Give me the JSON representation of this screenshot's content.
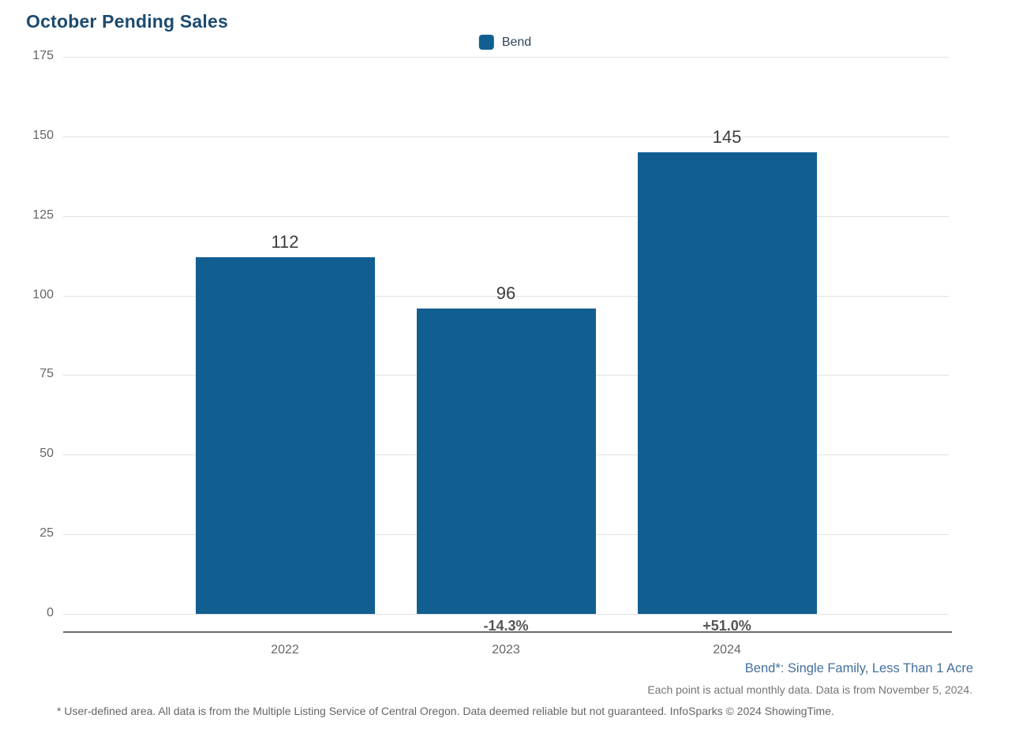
{
  "page": {
    "title": "October Pending Sales"
  },
  "legend": {
    "items": [
      {
        "label": "Bend",
        "color": "#115f91"
      }
    ]
  },
  "chart_data": {
    "type": "bar",
    "title": "October Pending Sales",
    "categories": [
      "2022",
      "2023",
      "2024"
    ],
    "series": [
      {
        "name": "Bend",
        "values": [
          112,
          96,
          145
        ]
      }
    ],
    "bar_value_labels": [
      "112",
      "96",
      "145"
    ],
    "pct_change_labels": [
      "",
      "-14.3%",
      "+51.0%"
    ],
    "ylim": [
      0,
      175
    ],
    "yticks": [
      0,
      25,
      50,
      75,
      100,
      125,
      150,
      175
    ],
    "grid": true,
    "legend_position": "top-center",
    "bar_color": "#115f91",
    "xlabel": "",
    "ylabel": ""
  },
  "footnotes": {
    "series_note": "Bend*: Single Family, Less Than 1 Acre",
    "data_note": "Each point is actual monthly data. Data is from November 5, 2024.",
    "disclaimer": "* User-defined area. All data is from the Multiple Listing Service of Central Oregon. Data deemed reliable but not guaranteed. InfoSparks © 2024 ShowingTime."
  },
  "colors": {
    "title": "#1c4b6e",
    "bar": "#115f91",
    "gridline": "#e2e2e2",
    "axis_line": "#6b6b6b",
    "tick_label": "#666666",
    "value_label": "#3d3d3d",
    "pct_label": "#555555",
    "series_note": "#44709d",
    "data_note": "#757575",
    "disclaimer": "#666666"
  }
}
